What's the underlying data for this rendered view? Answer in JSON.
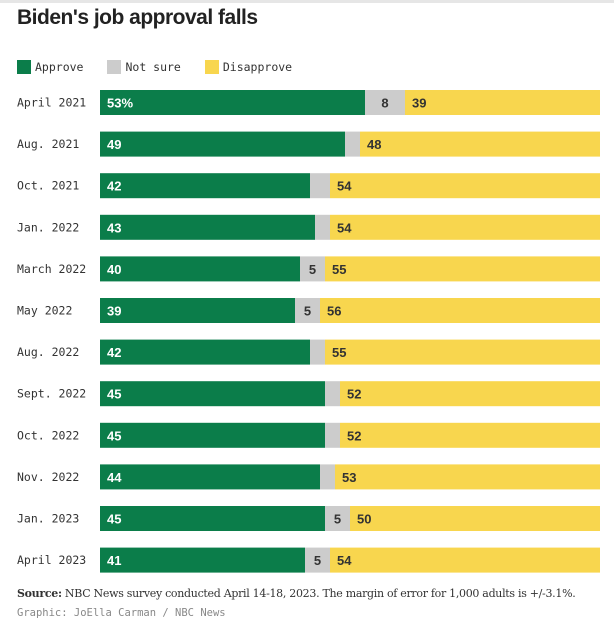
{
  "chart_data": {
    "type": "bar",
    "orientation": "horizontal-stacked",
    "title": "Biden's job approval falls",
    "categories": [
      "April 2021",
      "Aug. 2021",
      "Oct. 2021",
      "Jan. 2022",
      "March 2022",
      "May 2022",
      "Aug. 2022",
      "Sept. 2022",
      "Oct. 2022",
      "Nov. 2022",
      "Jan. 2023",
      "April 2023"
    ],
    "series": [
      {
        "name": "Approve",
        "color": "#0b7d4a",
        "values": [
          53,
          49,
          42,
          43,
          40,
          39,
          42,
          45,
          45,
          44,
          45,
          41
        ]
      },
      {
        "name": "Not sure",
        "color": "#cccccc",
        "values": [
          8,
          3,
          4,
          3,
          5,
          5,
          3,
          3,
          3,
          3,
          5,
          5
        ]
      },
      {
        "name": "Disapprove",
        "color": "#f8d64e",
        "values": [
          39,
          48,
          54,
          54,
          55,
          56,
          55,
          52,
          52,
          53,
          50,
          54
        ]
      }
    ],
    "first_approve_label": "53%",
    "xlim": [
      0,
      100
    ],
    "legend": "top-left"
  },
  "footer": {
    "source_label": "Source:",
    "source_text": " NBC News survey conducted April 14-18, 2023. The margin of error for 1,000 adults is +/-3.1%.",
    "credit": "Graphic: JoElla Carman / NBC News"
  }
}
